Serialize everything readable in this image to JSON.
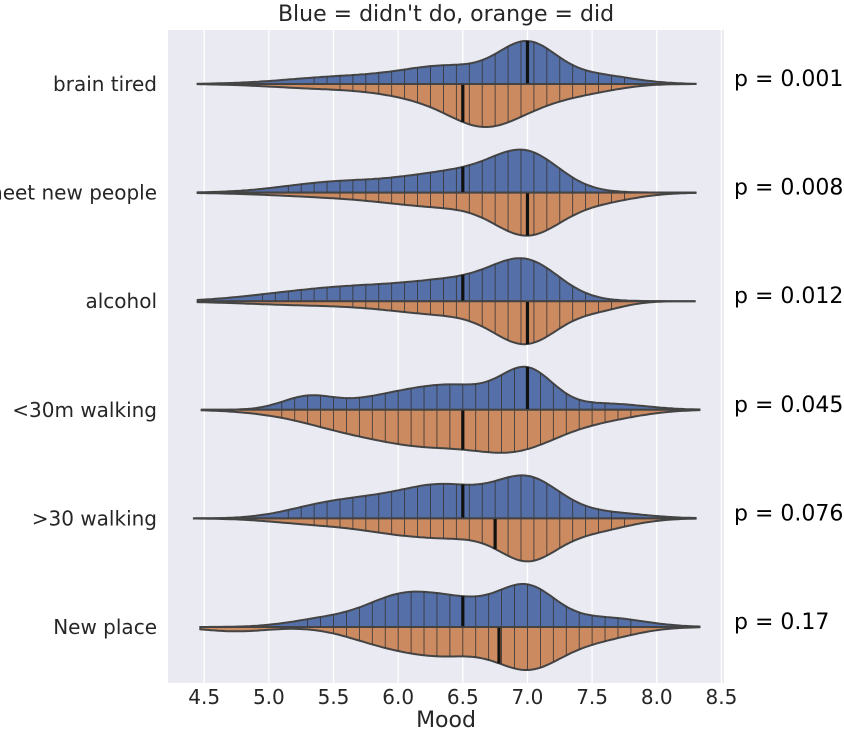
{
  "chart_data": {
    "type": "violin",
    "title": "Blue = didn't do, orange = did",
    "xlabel": "Mood",
    "ylabel": "",
    "xlim": [
      4.22,
      8.52
    ],
    "xticks": [
      4.5,
      5.0,
      5.5,
      6.0,
      6.5,
      7.0,
      7.5,
      8.0,
      8.5
    ],
    "xtick_labels": [
      "4.5",
      "5.0",
      "5.5",
      "6.0",
      "6.5",
      "7.0",
      "7.5",
      "8.0",
      "8.5"
    ],
    "grid": true,
    "split": true,
    "colors": {
      "didnt": "#5570a8",
      "did": "#cc8a60",
      "grid": "#ffffff",
      "background": "#eaeaf2",
      "outline": "#444444"
    },
    "categories": [
      "brain tired",
      "meet new people",
      "alcohol",
      "<30m walking",
      ">30 walking",
      "New place"
    ],
    "p_values": [
      "p = 0.0011",
      "p = 0.0085",
      "p = 0.012",
      "p = 0.045",
      "p = 0.076",
      "p = 0.17"
    ],
    "medians_didnt": [
      7.0,
      6.5,
      6.5,
      7.0,
      6.5,
      6.5
    ],
    "medians_did": [
      6.5,
      7.0,
      7.0,
      6.5,
      6.75,
      6.78
    ],
    "range_didnt": [
      [
        4.45,
        8.3
      ],
      [
        4.45,
        8.3
      ],
      [
        4.45,
        8.3
      ],
      [
        4.48,
        8.33
      ],
      [
        4.42,
        8.3
      ],
      [
        4.47,
        8.33
      ]
    ],
    "range_did": [
      [
        4.45,
        8.3
      ],
      [
        4.45,
        8.3
      ],
      [
        4.45,
        8.3
      ],
      [
        4.48,
        8.33
      ],
      [
        4.42,
        8.3
      ],
      [
        4.47,
        8.33
      ]
    ]
  }
}
